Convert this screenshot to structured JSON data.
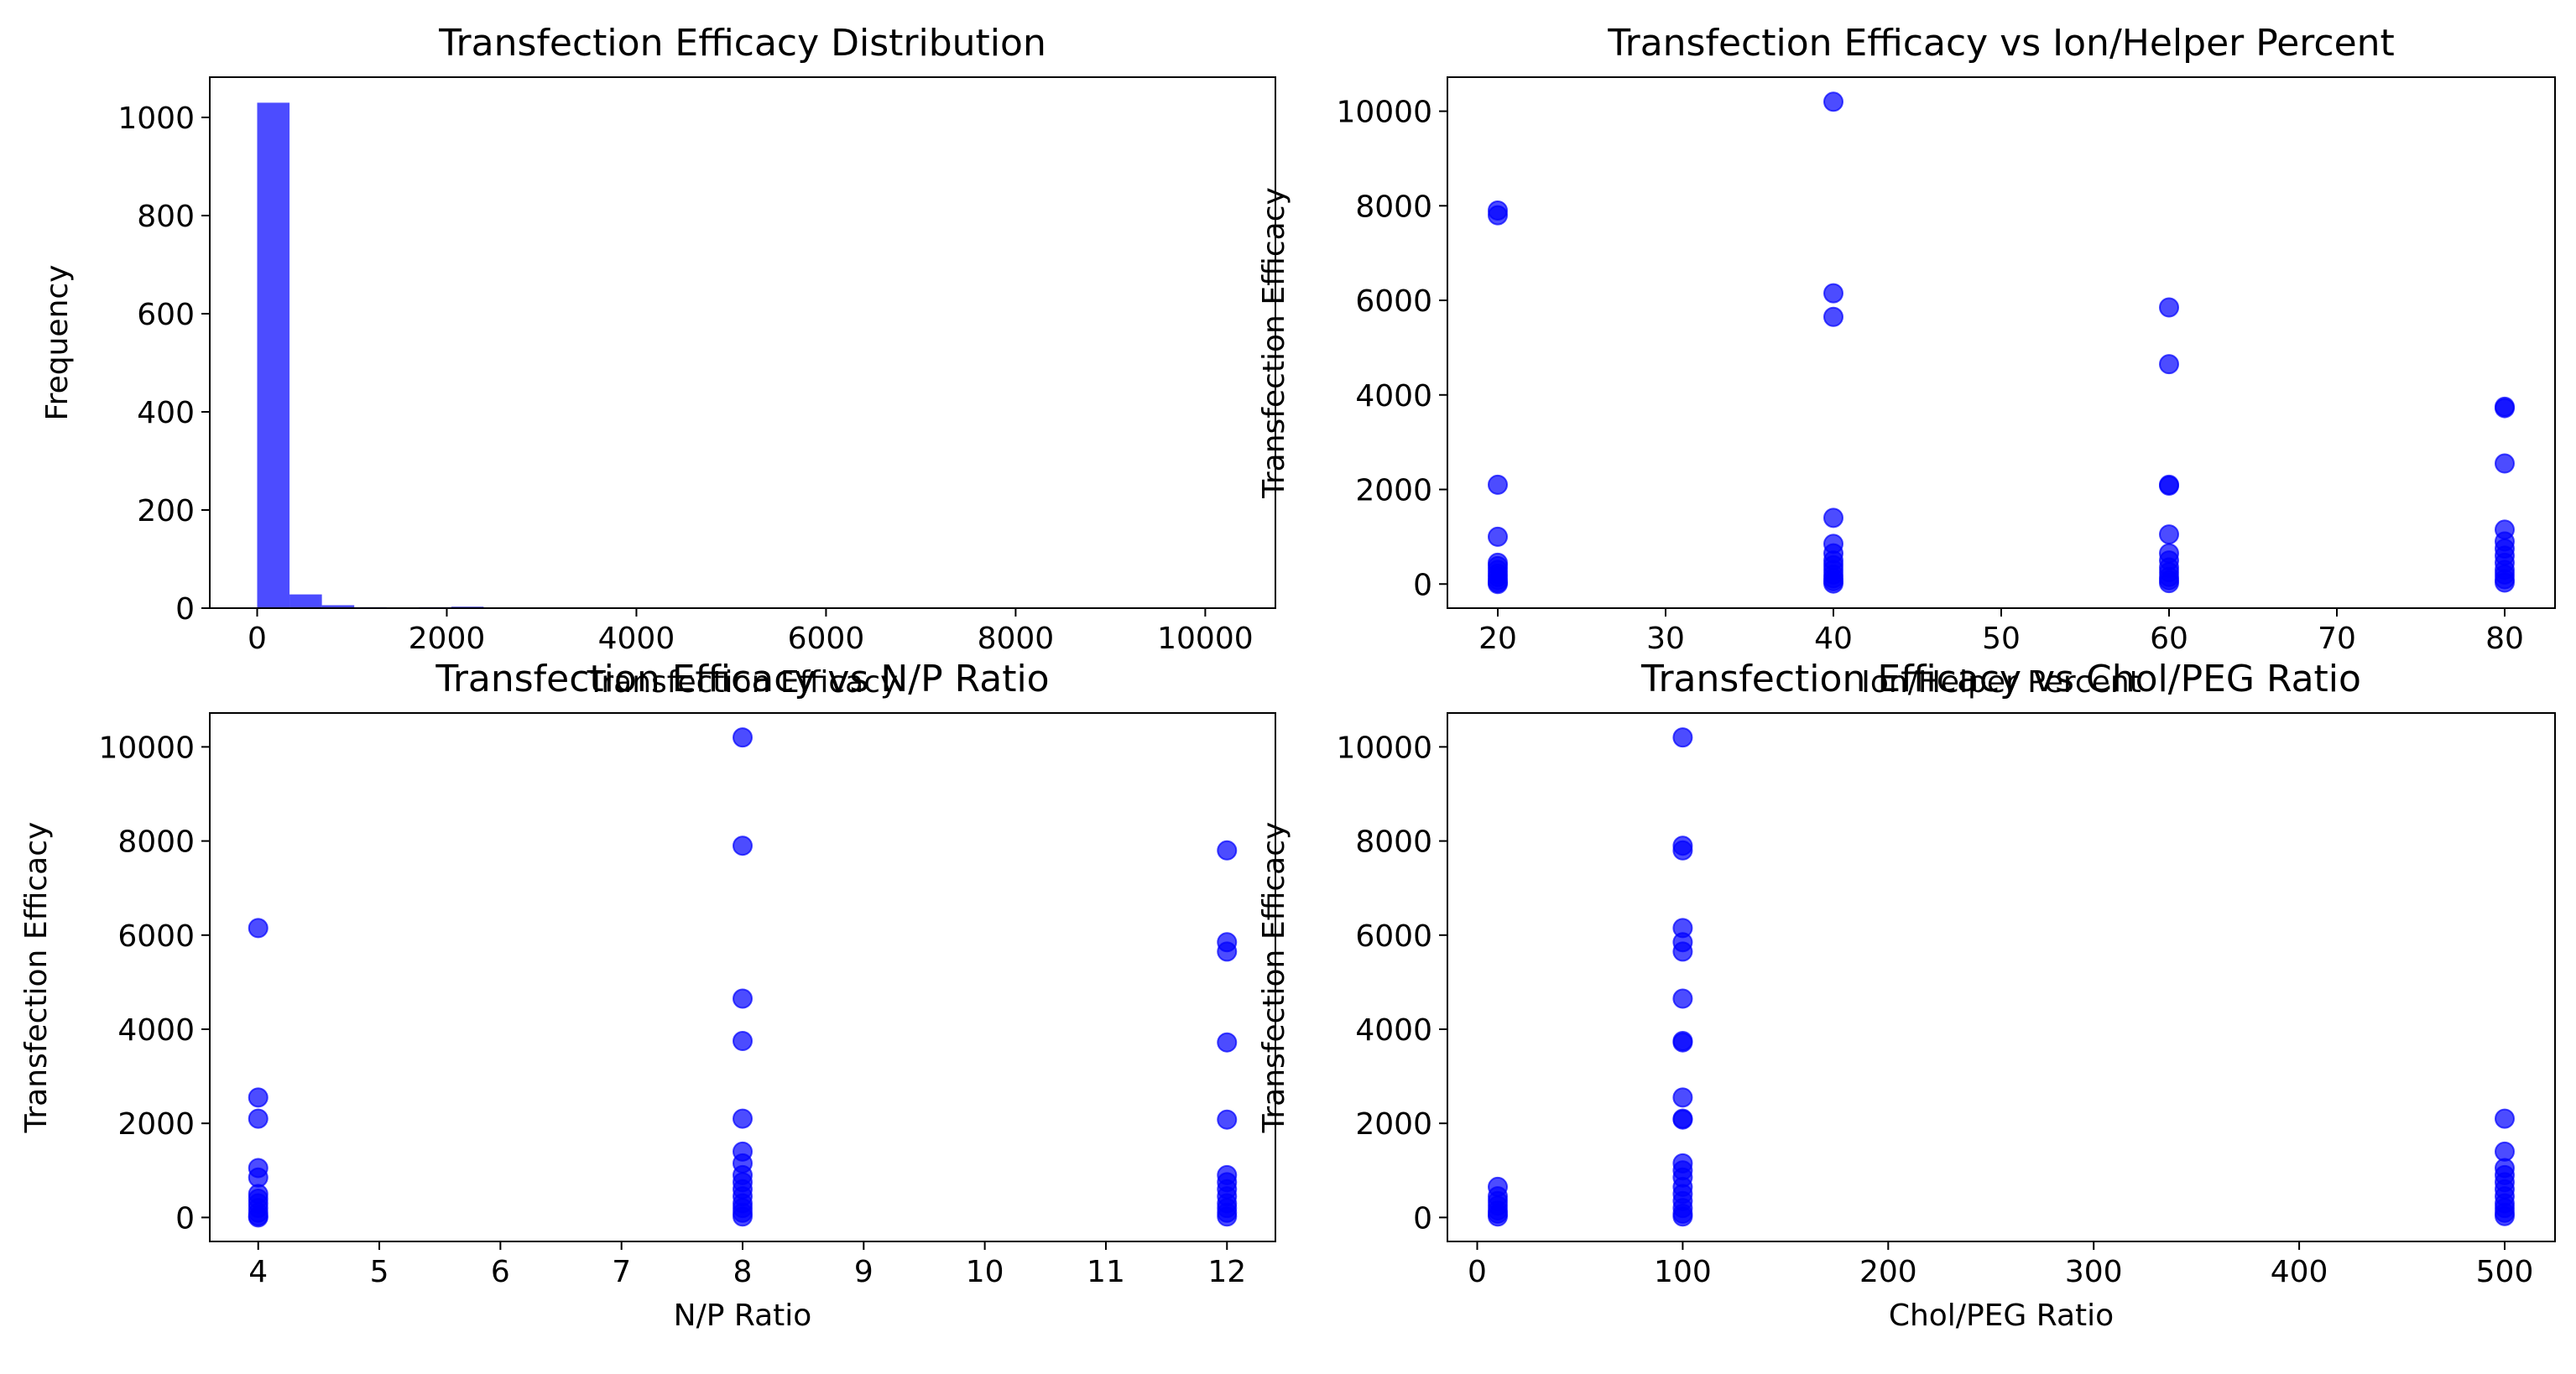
{
  "chart_data": [
    {
      "type": "bar",
      "title": "Transfection Efficacy Distribution",
      "xlabel": "Transfection Efficacy",
      "ylabel": "Frequency",
      "xlim": [
        -500,
        10740
      ],
      "ylim": [
        0,
        1082
      ],
      "xticks": [
        0,
        2000,
        4000,
        6000,
        8000,
        10000
      ],
      "yticks": [
        0,
        200,
        400,
        600,
        800,
        1000
      ],
      "bin_start": 0,
      "bin_width": 341.3,
      "counts": [
        1030,
        28,
        6,
        2,
        1,
        2,
        3,
        1,
        0,
        0,
        0,
        0,
        0,
        0,
        0,
        0,
        0,
        1,
        0,
        0,
        0,
        0,
        0,
        0,
        0,
        0,
        0,
        0,
        0,
        1
      ],
      "color": "#0000ff",
      "alpha": 0.7
    },
    {
      "type": "scatter",
      "title": "Transfection Efficacy vs Ion/Helper Percent",
      "xlabel": "Ion/Helper Percent",
      "ylabel": "Transfection Efficacy",
      "xlim": [
        17,
        83
      ],
      "ylim": [
        -510,
        10720
      ],
      "xticks": [
        20,
        30,
        40,
        50,
        60,
        70,
        80
      ],
      "yticks": [
        0,
        2000,
        4000,
        6000,
        8000,
        10000
      ],
      "color": "#0000ff",
      "alpha": 0.7,
      "points": [
        [
          20,
          7900
        ],
        [
          20,
          7800
        ],
        [
          20,
          2100
        ],
        [
          20,
          1000
        ],
        [
          20,
          450
        ],
        [
          20,
          380
        ],
        [
          20,
          300
        ],
        [
          20,
          220
        ],
        [
          20,
          150
        ],
        [
          20,
          80
        ],
        [
          20,
          30
        ],
        [
          20,
          0
        ],
        [
          40,
          10200
        ],
        [
          40,
          6150
        ],
        [
          40,
          5650
        ],
        [
          40,
          1400
        ],
        [
          40,
          850
        ],
        [
          40,
          650
        ],
        [
          40,
          500
        ],
        [
          40,
          400
        ],
        [
          40,
          300
        ],
        [
          40,
          200
        ],
        [
          40,
          120
        ],
        [
          40,
          60
        ],
        [
          40,
          10
        ],
        [
          60,
          5850
        ],
        [
          60,
          4650
        ],
        [
          60,
          2100
        ],
        [
          60,
          2080
        ],
        [
          60,
          1050
        ],
        [
          60,
          650
        ],
        [
          60,
          500
        ],
        [
          60,
          350
        ],
        [
          60,
          250
        ],
        [
          60,
          150
        ],
        [
          60,
          80
        ],
        [
          60,
          20
        ],
        [
          80,
          3750
        ],
        [
          80,
          3720
        ],
        [
          80,
          2550
        ],
        [
          80,
          1150
        ],
        [
          80,
          900
        ],
        [
          80,
          750
        ],
        [
          80,
          600
        ],
        [
          80,
          450
        ],
        [
          80,
          300
        ],
        [
          80,
          200
        ],
        [
          80,
          100
        ],
        [
          80,
          30
        ]
      ]
    },
    {
      "type": "scatter",
      "title": "Transfection Efficacy vs N/P Ratio",
      "xlabel": "N/P Ratio",
      "ylabel": "Transfection Efficacy",
      "xlim": [
        3.6,
        12.4
      ],
      "ylim": [
        -510,
        10720
      ],
      "xticks": [
        4,
        5,
        6,
        7,
        8,
        9,
        10,
        11,
        12
      ],
      "yticks": [
        0,
        2000,
        4000,
        6000,
        8000,
        10000
      ],
      "color": "#0000ff",
      "alpha": 0.7,
      "points": [
        [
          4,
          6150
        ],
        [
          4,
          2550
        ],
        [
          4,
          2100
        ],
        [
          4,
          1050
        ],
        [
          4,
          850
        ],
        [
          4,
          500
        ],
        [
          4,
          400
        ],
        [
          4,
          300
        ],
        [
          4,
          200
        ],
        [
          4,
          100
        ],
        [
          4,
          30
        ],
        [
          4,
          0
        ],
        [
          8,
          10200
        ],
        [
          8,
          7900
        ],
        [
          8,
          4650
        ],
        [
          8,
          3750
        ],
        [
          8,
          2100
        ],
        [
          8,
          1400
        ],
        [
          8,
          1150
        ],
        [
          8,
          900
        ],
        [
          8,
          750
        ],
        [
          8,
          600
        ],
        [
          8,
          450
        ],
        [
          8,
          300
        ],
        [
          8,
          200
        ],
        [
          8,
          100
        ],
        [
          8,
          20
        ],
        [
          12,
          7800
        ],
        [
          12,
          5850
        ],
        [
          12,
          5650
        ],
        [
          12,
          3720
        ],
        [
          12,
          2080
        ],
        [
          12,
          900
        ],
        [
          12,
          750
        ],
        [
          12,
          600
        ],
        [
          12,
          450
        ],
        [
          12,
          300
        ],
        [
          12,
          200
        ],
        [
          12,
          100
        ],
        [
          12,
          20
        ]
      ]
    },
    {
      "type": "scatter",
      "title": "Transfection Efficacy vs Chol/PEG Ratio",
      "xlabel": "Chol/PEG Ratio",
      "ylabel": "Transfection Efficacy",
      "xlim": [
        -14.5,
        524.5
      ],
      "ylim": [
        -510,
        10720
      ],
      "xticks": [
        0,
        100,
        200,
        300,
        400,
        500
      ],
      "yticks": [
        0,
        2000,
        4000,
        6000,
        8000,
        10000
      ],
      "color": "#0000ff",
      "alpha": 0.7,
      "points": [
        [
          10,
          650
        ],
        [
          10,
          450
        ],
        [
          10,
          350
        ],
        [
          10,
          250
        ],
        [
          10,
          150
        ],
        [
          10,
          80
        ],
        [
          10,
          20
        ],
        [
          100,
          10200
        ],
        [
          100,
          7900
        ],
        [
          100,
          7800
        ],
        [
          100,
          6150
        ],
        [
          100,
          5850
        ],
        [
          100,
          5650
        ],
        [
          100,
          4650
        ],
        [
          100,
          3750
        ],
        [
          100,
          3720
        ],
        [
          100,
          2550
        ],
        [
          100,
          2100
        ],
        [
          100,
          2080
        ],
        [
          100,
          1150
        ],
        [
          100,
          1000
        ],
        [
          100,
          850
        ],
        [
          100,
          650
        ],
        [
          100,
          500
        ],
        [
          100,
          350
        ],
        [
          100,
          200
        ],
        [
          100,
          80
        ],
        [
          100,
          20
        ],
        [
          500,
          2100
        ],
        [
          500,
          1400
        ],
        [
          500,
          1050
        ],
        [
          500,
          900
        ],
        [
          500,
          750
        ],
        [
          500,
          600
        ],
        [
          500,
          450
        ],
        [
          500,
          300
        ],
        [
          500,
          200
        ],
        [
          500,
          100
        ],
        [
          500,
          30
        ]
      ]
    }
  ]
}
